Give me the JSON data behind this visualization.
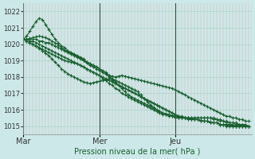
{
  "title": "",
  "xlabel": "Pression niveau de la mer( hPa )",
  "ylabel": "",
  "bg_color": "#cce8e8",
  "plot_bg_color": "#cce8e8",
  "grid_color_major": "#aad4c8",
  "grid_color_minor": "#f08080",
  "line_color": "#1a6030",
  "ylim": [
    1014.5,
    1022.5
  ],
  "yticks": [
    1015,
    1016,
    1017,
    1018,
    1019,
    1020,
    1021,
    1022
  ],
  "x_day_labels": [
    "Mar",
    "Mer",
    "Jeu"
  ],
  "n_points": 72,
  "series": [
    [
      1020.3,
      1020.3,
      1020.2,
      1020.2,
      1020.1,
      1020.0,
      1019.9,
      1019.8,
      1019.7,
      1019.6,
      1019.5,
      1019.4,
      1019.3,
      1019.2,
      1019.1,
      1019.0,
      1018.9,
      1018.8,
      1018.7,
      1018.6,
      1018.5,
      1018.4,
      1018.3,
      1018.2,
      1018.1,
      1017.9,
      1017.8,
      1017.6,
      1017.5,
      1017.3,
      1017.2,
      1017.0,
      1016.9,
      1016.8,
      1016.7,
      1016.6,
      1016.5,
      1016.4,
      1016.3,
      1016.2,
      1016.1,
      1016.0,
      1015.9,
      1015.8,
      1015.7,
      1015.7,
      1015.6,
      1015.6,
      1015.5,
      1015.5,
      1015.5,
      1015.5,
      1015.5,
      1015.5,
      1015.5,
      1015.5,
      1015.5,
      1015.5,
      1015.5,
      1015.5,
      1015.5,
      1015.4,
      1015.4,
      1015.3,
      1015.3,
      1015.2,
      1015.2,
      1015.2,
      1015.1,
      1015.1,
      1015.1,
      1015.0
    ],
    [
      1020.3,
      1020.5,
      1020.8,
      1021.1,
      1021.4,
      1021.6,
      1021.5,
      1021.2,
      1020.9,
      1020.6,
      1020.3,
      1020.1,
      1019.9,
      1019.8,
      1019.6,
      1019.5,
      1019.4,
      1019.3,
      1019.2,
      1019.1,
      1018.9,
      1018.8,
      1018.7,
      1018.6,
      1018.5,
      1018.3,
      1018.2,
      1018.0,
      1017.8,
      1017.6,
      1017.5,
      1017.4,
      1017.3,
      1017.2,
      1017.1,
      1017.0,
      1016.9,
      1016.8,
      1016.7,
      1016.6,
      1016.5,
      1016.4,
      1016.3,
      1016.2,
      1016.1,
      1016.0,
      1015.9,
      1015.8,
      1015.7,
      1015.6,
      1015.6,
      1015.5,
      1015.5,
      1015.5,
      1015.5,
      1015.5,
      1015.5,
      1015.5,
      1015.5,
      1015.5,
      1015.4,
      1015.4,
      1015.3,
      1015.3,
      1015.2,
      1015.2,
      1015.2,
      1015.1,
      1015.1,
      1015.1,
      1015.0,
      1015.0
    ],
    [
      1020.3,
      1020.2,
      1020.1,
      1020.0,
      1019.9,
      1019.8,
      1019.7,
      1019.6,
      1019.5,
      1019.4,
      1019.3,
      1019.2,
      1019.1,
      1019.0,
      1018.95,
      1018.9,
      1018.85,
      1018.8,
      1018.7,
      1018.6,
      1018.5,
      1018.4,
      1018.3,
      1018.2,
      1018.1,
      1018.0,
      1017.9,
      1017.8,
      1017.7,
      1017.6,
      1017.5,
      1017.4,
      1017.3,
      1017.2,
      1017.1,
      1017.0,
      1016.9,
      1016.8,
      1016.7,
      1016.6,
      1016.5,
      1016.4,
      1016.3,
      1016.2,
      1016.1,
      1016.0,
      1015.9,
      1015.8,
      1015.7,
      1015.6,
      1015.5,
      1015.5,
      1015.5,
      1015.4,
      1015.4,
      1015.4,
      1015.3,
      1015.3,
      1015.3,
      1015.2,
      1015.2,
      1015.2,
      1015.1,
      1015.1,
      1015.1,
      1015.1,
      1015.1,
      1015.0,
      1015.0,
      1015.0,
      1015.0,
      1015.0
    ],
    [
      1020.3,
      1020.3,
      1020.3,
      1020.3,
      1020.3,
      1020.2,
      1020.2,
      1020.1,
      1020.1,
      1020.0,
      1019.9,
      1019.8,
      1019.7,
      1019.6,
      1019.5,
      1019.4,
      1019.3,
      1019.2,
      1019.1,
      1019.0,
      1018.9,
      1018.8,
      1018.7,
      1018.6,
      1018.5,
      1018.4,
      1018.3,
      1018.1,
      1017.9,
      1017.7,
      1017.5,
      1017.3,
      1017.1,
      1016.9,
      1016.8,
      1016.7,
      1016.6,
      1016.5,
      1016.4,
      1016.3,
      1016.2,
      1016.1,
      1016.0,
      1015.9,
      1015.8,
      1015.7,
      1015.7,
      1015.6,
      1015.6,
      1015.5,
      1015.5,
      1015.5,
      1015.4,
      1015.4,
      1015.4,
      1015.4,
      1015.3,
      1015.3,
      1015.3,
      1015.2,
      1015.2,
      1015.2,
      1015.1,
      1015.1,
      1015.1,
      1015.1,
      1015.0,
      1015.0,
      1015.0,
      1015.0,
      1015.0,
      1015.0
    ],
    [
      1020.3,
      1020.3,
      1020.35,
      1020.4,
      1020.45,
      1020.5,
      1020.45,
      1020.4,
      1020.3,
      1020.2,
      1020.1,
      1019.95,
      1019.8,
      1019.65,
      1019.55,
      1019.45,
      1019.35,
      1019.25,
      1019.15,
      1019.0,
      1018.85,
      1018.7,
      1018.6,
      1018.5,
      1018.4,
      1018.3,
      1018.2,
      1018.1,
      1018.05,
      1018.0,
      1018.05,
      1018.1,
      1018.05,
      1018.0,
      1017.95,
      1017.9,
      1017.85,
      1017.8,
      1017.75,
      1017.7,
      1017.65,
      1017.6,
      1017.55,
      1017.5,
      1017.45,
      1017.4,
      1017.35,
      1017.3,
      1017.2,
      1017.1,
      1017.0,
      1016.9,
      1016.8,
      1016.7,
      1016.6,
      1016.5,
      1016.4,
      1016.3,
      1016.2,
      1016.1,
      1016.0,
      1015.9,
      1015.8,
      1015.7,
      1015.6,
      1015.6,
      1015.5,
      1015.5,
      1015.4,
      1015.4,
      1015.3,
      1015.3
    ],
    [
      1020.3,
      1020.2,
      1020.1,
      1020.0,
      1019.9,
      1019.75,
      1019.6,
      1019.45,
      1019.3,
      1019.1,
      1018.9,
      1018.7,
      1018.5,
      1018.35,
      1018.2,
      1018.1,
      1018.0,
      1017.9,
      1017.8,
      1017.7,
      1017.65,
      1017.6,
      1017.65,
      1017.7,
      1017.75,
      1017.8,
      1017.85,
      1017.9,
      1017.85,
      1017.8,
      1017.7,
      1017.6,
      1017.5,
      1017.4,
      1017.3,
      1017.2,
      1017.1,
      1016.9,
      1016.7,
      1016.5,
      1016.3,
      1016.15,
      1016.0,
      1015.9,
      1015.8,
      1015.75,
      1015.7,
      1015.65,
      1015.6,
      1015.55,
      1015.5,
      1015.5,
      1015.45,
      1015.45,
      1015.4,
      1015.4,
      1015.35,
      1015.3,
      1015.3,
      1015.25,
      1015.2,
      1015.2,
      1015.1,
      1015.1,
      1015.0,
      1015.0,
      1015.0,
      1015.0,
      1015.0,
      1015.0,
      1015.0,
      1015.0
    ]
  ]
}
